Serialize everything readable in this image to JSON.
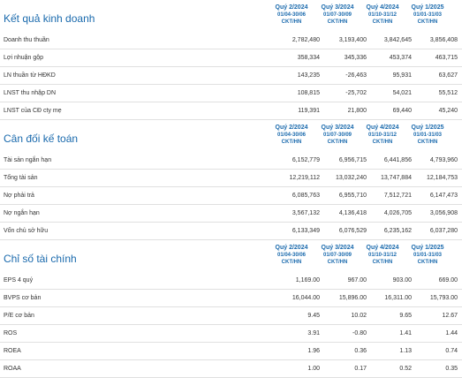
{
  "periods": [
    {
      "quarter": "Quý 2/2024",
      "range": "01/04-30/06",
      "unit": "CKT/HN"
    },
    {
      "quarter": "Quý 3/2024",
      "range": "01/07-30/09",
      "unit": "CKT/HN"
    },
    {
      "quarter": "Quý 4/2024",
      "range": "01/10-31/12",
      "unit": "CKT/HN"
    },
    {
      "quarter": "Quý 1/2025",
      "range": "01/01-31/03",
      "unit": "CKT/HN"
    }
  ],
  "sections": [
    {
      "title": "Kết quả kinh doanh",
      "rows": [
        {
          "label": "Doanh thu thuần",
          "values": [
            "2,782,480",
            "3,193,400",
            "3,842,645",
            "3,856,408"
          ]
        },
        {
          "label": "Lợi nhuận gộp",
          "values": [
            "358,334",
            "345,336",
            "453,374",
            "463,715"
          ]
        },
        {
          "label": "LN thuần từ HĐKD",
          "values": [
            "143,235",
            "-26,463",
            "95,931",
            "63,627"
          ]
        },
        {
          "label": "LNST thu nhập DN",
          "values": [
            "108,815",
            "-25,702",
            "54,021",
            "55,512"
          ]
        },
        {
          "label": "LNST của CĐ cty mẹ",
          "values": [
            "119,391",
            "21,800",
            "69,440",
            "45,240"
          ]
        }
      ]
    },
    {
      "title": "Cân đối kế toán",
      "rows": [
        {
          "label": "Tài sản ngắn hạn",
          "values": [
            "6,152,779",
            "6,956,715",
            "6,441,856",
            "4,793,960"
          ]
        },
        {
          "label": "Tổng tài sản",
          "values": [
            "12,219,112",
            "13,032,240",
            "13,747,884",
            "12,184,753"
          ]
        },
        {
          "label": "Nợ phải trả",
          "values": [
            "6,085,763",
            "6,955,710",
            "7,512,721",
            "6,147,473"
          ]
        },
        {
          "label": "Nợ ngắn hạn",
          "values": [
            "3,567,132",
            "4,136,418",
            "4,026,705",
            "3,056,908"
          ]
        },
        {
          "label": "Vốn chủ sở hữu",
          "values": [
            "6,133,349",
            "6,076,529",
            "6,235,162",
            "6,037,280"
          ]
        }
      ]
    },
    {
      "title": "Chỉ số tài chính",
      "rows": [
        {
          "label": "EPS 4 quý",
          "values": [
            "1,169.00",
            "967.00",
            "903.00",
            "669.00"
          ]
        },
        {
          "label": "BVPS cơ bản",
          "values": [
            "16,044.00",
            "15,896.00",
            "16,311.00",
            "15,793.00"
          ]
        },
        {
          "label": "P/E cơ bản",
          "values": [
            "9.45",
            "10.02",
            "9.65",
            "12.67"
          ]
        },
        {
          "label": "ROS",
          "values": [
            "3.91",
            "-0.80",
            "1.41",
            "1.44"
          ]
        },
        {
          "label": "ROEA",
          "values": [
            "1.96",
            "0.36",
            "1.13",
            "0.74"
          ]
        },
        {
          "label": "ROAA",
          "values": [
            "1.00",
            "0.17",
            "0.52",
            "0.35"
          ]
        }
      ]
    }
  ]
}
